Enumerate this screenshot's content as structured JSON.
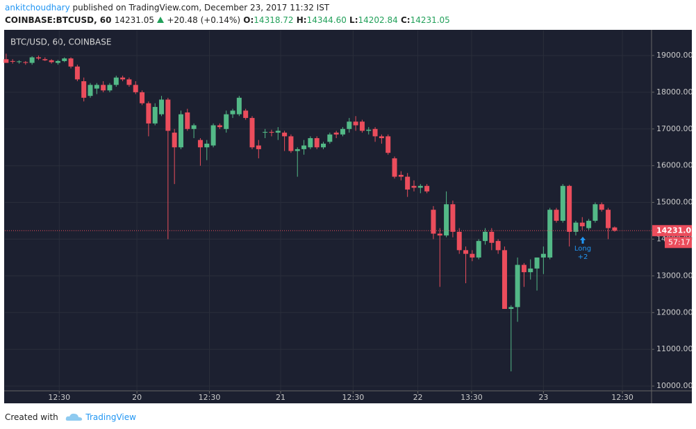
{
  "header": {
    "author": "ankitchoudhary",
    "published": "published on TradingView.com, December 23, 2017 11:32 IST",
    "symbol": "COINBASE:BTCUSD, 60",
    "last": "14231.05",
    "change": "+20.48 (+0.14%)",
    "ohlc": [
      {
        "label": "O:",
        "value": "14318.72"
      },
      {
        "label": "H:",
        "value": "14344.60"
      },
      {
        "label": "L:",
        "value": "14202.84"
      },
      {
        "label": "C:",
        "value": "14231.05"
      }
    ]
  },
  "chart_data": {
    "type": "candlestick",
    "title": "BTC/USD, 60, COINBASE",
    "up_color": "#53b987",
    "down_color": "#eb4d5c",
    "background": "#1c2030",
    "grid": true,
    "last_price": 14231.05,
    "countdown": "57:17",
    "annotation": {
      "text": "Long",
      "sub": "+2"
    },
    "xlim": [
      -0.2,
      99.7
    ],
    "ylim": [
      9870,
      19680
    ],
    "xticks": [
      {
        "value": 8.2,
        "label": "12:30"
      },
      {
        "value": 20.2,
        "label": "20"
      },
      {
        "value": 31.4,
        "label": "12:30"
      },
      {
        "value": 42.4,
        "label": "21"
      },
      {
        "value": 53.6,
        "label": "12:30"
      },
      {
        "value": 63.6,
        "label": "22"
      },
      {
        "value": 71.9,
        "label": "13:30"
      },
      {
        "value": 83,
        "label": "23"
      },
      {
        "value": 95.2,
        "label": "12:30"
      }
    ],
    "yticks": [
      {
        "value": 10000,
        "label": "10000.00"
      },
      {
        "value": 11000,
        "label": "11000.00"
      },
      {
        "value": 12000,
        "label": "12000.00"
      },
      {
        "value": 13000,
        "label": "13000.00"
      },
      {
        "value": 14000,
        "label": "14000.00"
      },
      {
        "value": 15000,
        "label": "15000.00"
      },
      {
        "value": 16000,
        "label": "16000.00"
      },
      {
        "value": 17000,
        "label": "17000.00"
      },
      {
        "value": 18000,
        "label": "18000.00"
      },
      {
        "value": 19000,
        "label": "19000.00"
      }
    ],
    "x": [
      0,
      1,
      2,
      3,
      4,
      5,
      6,
      7,
      8,
      9,
      10,
      11,
      12,
      13,
      14,
      15,
      16,
      17,
      18,
      19,
      20,
      21,
      22,
      23,
      24,
      25,
      26,
      27,
      28,
      29,
      30,
      31,
      32,
      33,
      34,
      35,
      36,
      37,
      38,
      39,
      40,
      41,
      42,
      43,
      44,
      45,
      46,
      47,
      48,
      49,
      50,
      51,
      52,
      53,
      54,
      55,
      56,
      57,
      58,
      59,
      60,
      61,
      62,
      63,
      64,
      65,
      66,
      67,
      68,
      69,
      70,
      71,
      72,
      73,
      74,
      75,
      76,
      77,
      78,
      79,
      80,
      81,
      82,
      83,
      84,
      85,
      86,
      87,
      88,
      89,
      90,
      91,
      92,
      93,
      94
    ],
    "candles": [
      [
        18900,
        19050,
        18800,
        18800
      ],
      [
        18850,
        18900,
        18780,
        18830
      ],
      [
        18830,
        18870,
        18780,
        18840
      ],
      [
        18820,
        18850,
        18750,
        18800
      ],
      [
        18800,
        18980,
        18750,
        18950
      ],
      [
        18950,
        19000,
        18880,
        18920
      ],
      [
        18900,
        18950,
        18850,
        18870
      ],
      [
        18870,
        18900,
        18780,
        18820
      ],
      [
        18800,
        18880,
        18750,
        18850
      ],
      [
        18850,
        18950,
        18820,
        18920
      ],
      [
        18920,
        18950,
        18650,
        18700
      ],
      [
        18700,
        18750,
        18300,
        18350
      ],
      [
        18300,
        18400,
        17750,
        17850
      ],
      [
        17900,
        18250,
        17850,
        18200
      ],
      [
        18100,
        18250,
        17950,
        18200
      ],
      [
        18200,
        18300,
        18000,
        18050
      ],
      [
        18050,
        18250,
        18000,
        18200
      ],
      [
        18200,
        18450,
        18150,
        18400
      ],
      [
        18400,
        18450,
        18300,
        18350
      ],
      [
        18350,
        18400,
        18150,
        18200
      ],
      [
        18200,
        18300,
        17950,
        18000
      ],
      [
        18000,
        18050,
        17650,
        17700
      ],
      [
        17700,
        17750,
        16800,
        17150
      ],
      [
        17150,
        17700,
        17100,
        17600
      ],
      [
        17400,
        17900,
        17350,
        17800
      ],
      [
        17800,
        17850,
        14000,
        16950
      ],
      [
        16900,
        17000,
        15500,
        16500
      ],
      [
        16500,
        17500,
        16450,
        17400
      ],
      [
        17450,
        17550,
        16950,
        17000
      ],
      [
        17000,
        17150,
        16750,
        17100
      ],
      [
        16700,
        16750,
        16000,
        16500
      ],
      [
        16500,
        16700,
        16150,
        16600
      ],
      [
        16550,
        17150,
        16500,
        17100
      ],
      [
        17100,
        17150,
        17000,
        17050
      ],
      [
        17000,
        17500,
        16900,
        17400
      ],
      [
        17400,
        17550,
        17300,
        17500
      ],
      [
        17400,
        17900,
        17350,
        17850
      ],
      [
        17500,
        17550,
        17250,
        17300
      ],
      [
        17300,
        17350,
        16450,
        16500
      ],
      [
        16550,
        16700,
        16200,
        16450
      ],
      [
        16900,
        17000,
        16750,
        16920
      ],
      [
        16920,
        16980,
        16800,
        16900
      ],
      [
        16900,
        17050,
        16700,
        16950
      ],
      [
        16900,
        16950,
        16400,
        16800
      ],
      [
        16800,
        16850,
        16350,
        16400
      ],
      [
        16400,
        16500,
        15700,
        16450
      ],
      [
        16450,
        16700,
        16300,
        16550
      ],
      [
        16500,
        16800,
        16450,
        16750
      ],
      [
        16750,
        16800,
        16450,
        16500
      ],
      [
        16500,
        16650,
        16450,
        16600
      ],
      [
        16650,
        16900,
        16600,
        16850
      ],
      [
        16900,
        16950,
        16750,
        16850
      ],
      [
        16850,
        17050,
        16800,
        17000
      ],
      [
        17000,
        17300,
        16900,
        17200
      ],
      [
        17200,
        17350,
        16950,
        17100
      ],
      [
        17200,
        17250,
        16900,
        16950
      ],
      [
        16950,
        17050,
        16850,
        16980
      ],
      [
        17000,
        17050,
        16650,
        16800
      ],
      [
        16800,
        16850,
        16600,
        16750
      ],
      [
        16800,
        16850,
        16300,
        16350
      ],
      [
        16200,
        16250,
        15650,
        15700
      ],
      [
        15750,
        15850,
        15600,
        15700
      ],
      [
        15700,
        15800,
        15150,
        15350
      ],
      [
        15450,
        15600,
        15300,
        15400
      ],
      [
        15400,
        15500,
        15250,
        15450
      ],
      [
        15450,
        15500,
        15250,
        15300
      ],
      [
        14800,
        14900,
        14000,
        14150
      ],
      [
        14150,
        14300,
        12700,
        14100
      ],
      [
        14100,
        15300,
        14050,
        14950
      ],
      [
        14950,
        15050,
        14050,
        14200
      ],
      [
        14200,
        14300,
        13600,
        13700
      ],
      [
        13700,
        13800,
        12800,
        13600
      ],
      [
        13600,
        13700,
        13400,
        13500
      ],
      [
        13500,
        14000,
        13450,
        13950
      ],
      [
        13950,
        14300,
        13850,
        14200
      ],
      [
        14200,
        14300,
        13700,
        13900
      ],
      [
        13950,
        14000,
        13600,
        13700
      ],
      [
        13700,
        13800,
        12100,
        12100
      ],
      [
        12100,
        12200,
        10400,
        12150
      ],
      [
        12150,
        13500,
        11750,
        13300
      ],
      [
        13300,
        13350,
        12700,
        13100
      ],
      [
        13100,
        13450,
        12900,
        13200
      ],
      [
        13200,
        13500,
        12600,
        13500
      ],
      [
        13500,
        13800,
        13050,
        13600
      ],
      [
        13500,
        14850,
        13450,
        14800
      ],
      [
        14800,
        14850,
        14450,
        14500
      ],
      [
        14500,
        15500,
        14450,
        15450
      ],
      [
        15450,
        15480,
        13800,
        14200
      ],
      [
        14200,
        14500,
        14100,
        14450
      ],
      [
        14450,
        14600,
        14250,
        14350
      ],
      [
        14300,
        14550,
        14250,
        14500
      ],
      [
        14500,
        15000,
        14450,
        14950
      ],
      [
        14950,
        15000,
        14750,
        14800
      ],
      [
        14800,
        14850,
        14000,
        14300
      ],
      [
        14318.72,
        14344.6,
        14202.84,
        14231.05
      ]
    ]
  }
}
